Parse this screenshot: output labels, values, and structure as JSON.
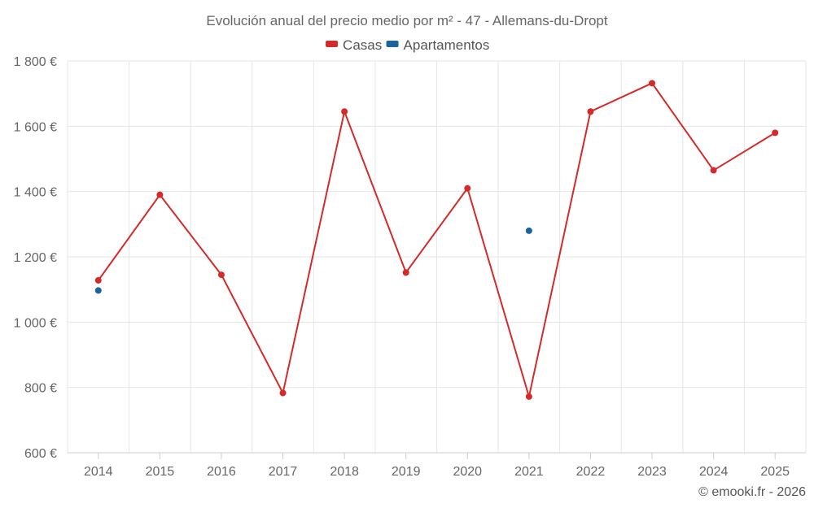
{
  "chart_data": {
    "type": "line",
    "title": "Evolución anual del precio medio por m² - 47 - Allemans-du-Dropt",
    "categories": [
      "2014",
      "2015",
      "2016",
      "2017",
      "2018",
      "2019",
      "2020",
      "2021",
      "2022",
      "2023",
      "2024",
      "2025"
    ],
    "series": [
      {
        "name": "Casas",
        "color": "#d42a2a",
        "values": [
          1128,
          1390,
          1145,
          783,
          1645,
          1152,
          1410,
          772,
          1645,
          1732,
          1465,
          1580
        ]
      },
      {
        "name": "Apartamentos",
        "color": "#1a6699",
        "values": [
          1097,
          null,
          null,
          null,
          null,
          null,
          null,
          1280,
          null,
          null,
          null,
          null
        ]
      }
    ],
    "ylim": [
      600,
      1800
    ],
    "yticks": [
      600,
      800,
      1000,
      1200,
      1400,
      1600,
      1800
    ],
    "ytick_labels": [
      "600 €",
      "800 €",
      "1 000 €",
      "1 200 €",
      "1 400 €",
      "1 600 €",
      "1 800 €"
    ],
    "xlabel": "",
    "ylabel": "",
    "grid": true,
    "legend_position": "top-center"
  },
  "footer": {
    "credit": "© emooki.fr - 2026"
  }
}
